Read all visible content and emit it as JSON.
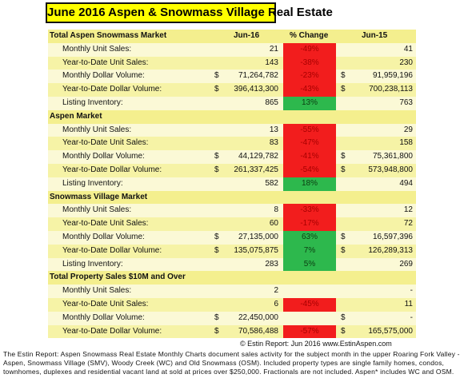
{
  "title": "June 2016 Aspen & Snowmass Village Real Estate",
  "columns": [
    "Jun-16",
    "% Change",
    "Jun-15"
  ],
  "sections": [
    {
      "name": "Total Aspen Snowmass Market",
      "rows": [
        {
          "label": "Monthly Unit Sales:",
          "jun16": "21",
          "change": "-49%",
          "change_color": "#f21d1d",
          "jun15": "41"
        },
        {
          "label": "Year-to-Date Unit Sales:",
          "jun16": "143",
          "change": "-38%",
          "change_color": "#f21d1d",
          "jun15": "230"
        },
        {
          "label": "Monthly Dollar Volume:",
          "cur16": "$",
          "jun16": "71,264,782",
          "change": "-23%",
          "change_color": "#f21d1d",
          "cur15": "$",
          "jun15": "91,959,196"
        },
        {
          "label": "Year-to-Date Dollar Volume:",
          "cur16": "$",
          "jun16": "396,413,300",
          "change": "-43%",
          "change_color": "#f21d1d",
          "cur15": "$",
          "jun15": "700,238,113"
        },
        {
          "label": "Listing Inventory:",
          "jun16": "865",
          "change": "13%",
          "change_color": "#2db84d",
          "jun15": "763"
        }
      ]
    },
    {
      "name": "Aspen Market",
      "rows": [
        {
          "label": "Monthly Unit Sales:",
          "jun16": "13",
          "change": "-55%",
          "change_color": "#f21d1d",
          "jun15": "29"
        },
        {
          "label": "Year-to-Date Unit Sales:",
          "jun16": "83",
          "change": "-47%",
          "change_color": "#f21d1d",
          "jun15": "158"
        },
        {
          "label": "Monthly Dollar Volume:",
          "cur16": "$",
          "jun16": "44,129,782",
          "change": "-41%",
          "change_color": "#f21d1d",
          "cur15": "$",
          "jun15": "75,361,800"
        },
        {
          "label": "Year-to-Date Dollar Volume:",
          "cur16": "$",
          "jun16": "261,337,425",
          "change": "-54%",
          "change_color": "#f21d1d",
          "cur15": "$",
          "jun15": "573,948,800"
        },
        {
          "label": "Listing Inventory:",
          "jun16": "582",
          "change": "18%",
          "change_color": "#2db84d",
          "jun15": "494"
        }
      ]
    },
    {
      "name": "Snowmass Village Market",
      "rows": [
        {
          "label": "Monthly Unit Sales:",
          "jun16": "8",
          "change": "-33%",
          "change_color": "#f21d1d",
          "jun15": "12"
        },
        {
          "label": "Year-to-Date Unit Sales:",
          "jun16": "60",
          "change": "-17%",
          "change_color": "#f21d1d",
          "jun15": "72"
        },
        {
          "label": "Monthly Dollar Volume:",
          "cur16": "$",
          "jun16": "27,135,000",
          "change": "63%",
          "change_color": "#2db84d",
          "cur15": "$",
          "jun15": "16,597,396"
        },
        {
          "label": "Year-to-Date Dollar Volume:",
          "cur16": "$",
          "jun16": "135,075,875",
          "change": "7%",
          "change_color": "#2db84d",
          "cur15": "$",
          "jun15": "126,289,313"
        },
        {
          "label": "Listing Inventory:",
          "jun16": "283",
          "change": "5%",
          "change_color": "#2db84d",
          "jun15": "269"
        }
      ]
    },
    {
      "name": "Total Property Sales $10M and Over",
      "rows": [
        {
          "label": "Monthly Unit Sales:",
          "jun16": "2",
          "jun15": "-"
        },
        {
          "label": "Year-to-Date Unit Sales:",
          "jun16": "6",
          "change": "-45%",
          "change_color": "#f21d1d",
          "jun15": "11"
        },
        {
          "label": "Monthly Dollar Volume:",
          "cur16": "$",
          "jun16": "22,450,000",
          "cur15": "$",
          "jun15": "-"
        },
        {
          "label": "Year-to-Date Dollar Volume:",
          "cur16": "$",
          "jun16": "70,586,488",
          "change": "-57%",
          "change_color": "#f21d1d",
          "cur15": "$",
          "jun15": "165,575,000"
        }
      ]
    }
  ],
  "source": "© Estin Report: Jun 2016 www.EstinAspen.com",
  "footnote": "The Estin Report: Aspen Snowmass Real Estate Monthly Charts document sales activity for the subject month in the upper Roaring Fork Valley - Aspen, Snowmass Village (SMV), Woody Creek (WC) and Old Snowmass (OSM). Included property types are single family homes, condos, townhomes, duplexes and residential vacant land at sold at prices over $250,000. Fractionals are not included. Aspen* includes WC and OSM."
}
